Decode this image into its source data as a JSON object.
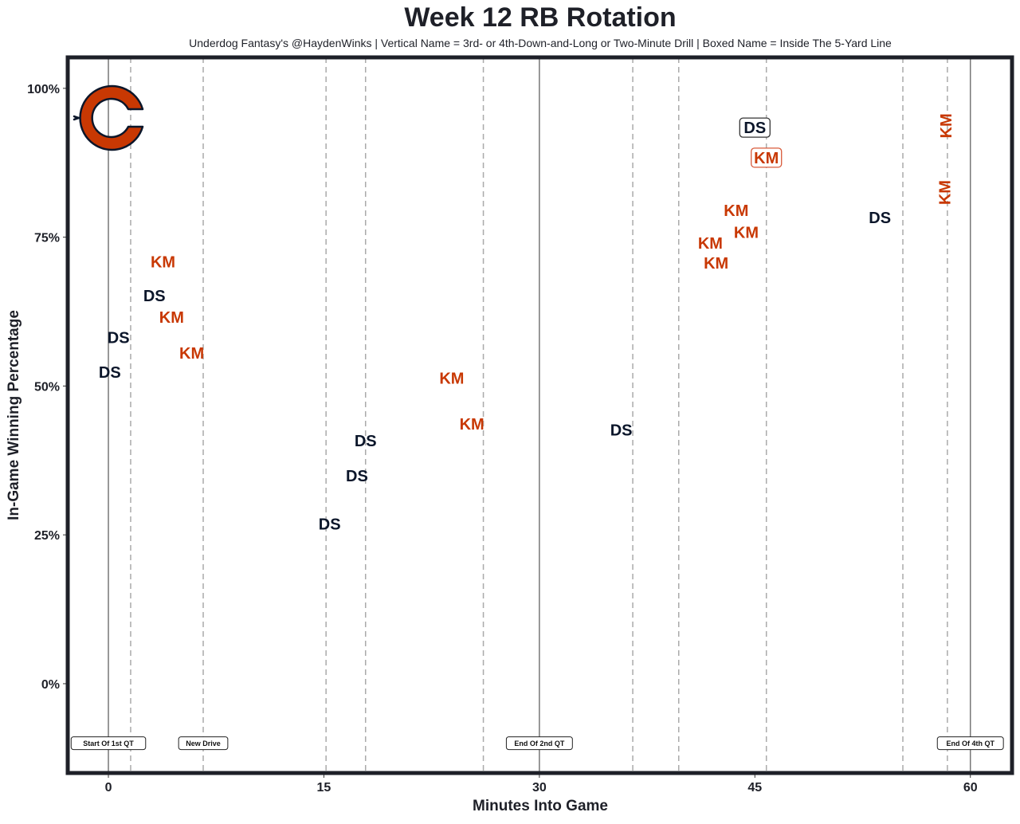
{
  "chart_data": {
    "type": "scatter",
    "title": "Week 12 RB Rotation",
    "subtitle": "Underdog Fantasy's @HaydenWinks | Vertical Name = 3rd- or 4th-Down-and-Long or Two-Minute Drill | Boxed Name = Inside The 5-Yard Line",
    "xlabel": "Minutes Into Game",
    "ylabel": "In-Game Winning Percentage",
    "xlim": [
      -2.83,
      62.9
    ],
    "ylim": [
      -15,
      105.2
    ],
    "x_ticks": [
      0,
      15,
      30,
      45,
      60
    ],
    "x_tick_labels": [
      "0",
      "15",
      "30",
      "45",
      "60"
    ],
    "y_ticks": [
      0,
      25,
      50,
      75,
      100
    ],
    "y_tick_labels": [
      "0%",
      "25%",
      "50%",
      "75%",
      "100%"
    ],
    "grid": false,
    "colors": {
      "DS": "#0b162a",
      "KM": "#c83803",
      "frame": "#1e2028"
    },
    "quarter_lines": [
      0,
      30,
      60
    ],
    "drive_lines": [
      1.55,
      6.6,
      15.15,
      17.9,
      26.1,
      36.5,
      39.7,
      45.8,
      55.3,
      58.4
    ],
    "annotations": [
      {
        "x": 0,
        "y": -10,
        "text": "Start Of 1st QT"
      },
      {
        "x": 6.6,
        "y": -10,
        "text": "New Drive"
      },
      {
        "x": 30,
        "y": -10,
        "text": "End Of 2nd QT"
      },
      {
        "x": 60,
        "y": -10,
        "text": "End Of 4th QT"
      }
    ],
    "series": [
      {
        "name": "DS",
        "points": [
          {
            "x": 0.1,
            "y": 52.3
          },
          {
            "x": 0.7,
            "y": 55.2
          },
          {
            "x": 3.2,
            "y": 65.2
          },
          {
            "x": 15.4,
            "y": 26.8
          },
          {
            "x": 17.3,
            "y": 34.9
          },
          {
            "x": 17.9,
            "y": 37.9
          },
          {
            "x": 35.7,
            "y": 42.6
          },
          {
            "x": 45.0,
            "y": 93.4,
            "boxed": true
          },
          {
            "x": 53.7,
            "y": 78.3
          }
        ]
      },
      {
        "name": "KM",
        "points": [
          {
            "x": 3.8,
            "y": 67.9
          },
          {
            "x": 4.4,
            "y": 64.5
          },
          {
            "x": 5.8,
            "y": 58.5
          },
          {
            "x": 23.9,
            "y": 51.3
          },
          {
            "x": 25.3,
            "y": 43.6
          },
          {
            "x": 41.9,
            "y": 74.0
          },
          {
            "x": 42.3,
            "y": 73.6
          },
          {
            "x": 43.7,
            "y": 79.5
          },
          {
            "x": 44.4,
            "y": 75.8
          },
          {
            "x": 45.8,
            "y": 91.3,
            "boxed": true
          },
          {
            "x": 58.2,
            "y": 82.5,
            "vertical": true
          },
          {
            "x": 58.3,
            "y": 93.7,
            "vertical": true
          }
        ]
      }
    ],
    "logo": "chicago-bears-c-logo"
  }
}
